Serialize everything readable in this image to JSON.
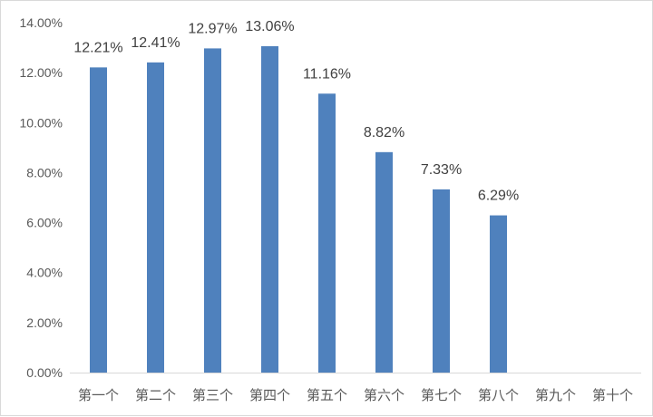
{
  "chart_data": {
    "type": "bar",
    "title": "",
    "xlabel": "",
    "ylabel": "",
    "categories": [
      "第一个",
      "第二个",
      "第三个",
      "第四个",
      "第五个",
      "第六个",
      "第七个",
      "第八个",
      "第九个",
      "第十个"
    ],
    "values": [
      12.21,
      12.41,
      12.97,
      13.06,
      11.16,
      8.82,
      7.33,
      6.29,
      null,
      null
    ],
    "data_labels": [
      "12.21%",
      "12.41%",
      "12.97%",
      "13.06%",
      "11.16%",
      "8.82%",
      "7.33%",
      "6.29%",
      "",
      ""
    ],
    "ylim": [
      0,
      14
    ],
    "yticks": [
      0,
      2,
      4,
      6,
      8,
      10,
      12,
      14
    ],
    "ytick_labels": [
      "0.00%",
      "2.00%",
      "4.00%",
      "6.00%",
      "8.00%",
      "10.00%",
      "12.00%",
      "14.00%"
    ],
    "grid": false,
    "legend": "none",
    "bar_color": "#4f81bd",
    "axis_color": "#d9d9d9"
  }
}
